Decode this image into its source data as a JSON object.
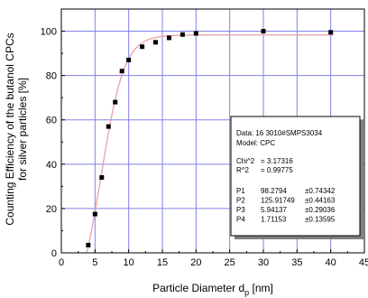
{
  "chart_data": {
    "type": "scatter",
    "xlabel": "Particle Diameter d",
    "xlabel_sub": "p",
    "xlabel_unit": " [nm]",
    "ylabel_line1": "Counting Efficiency of the butanol CPCs",
    "ylabel_line2": "for silver particles  [%]",
    "xlim": [
      0,
      45
    ],
    "ylim": [
      0,
      110
    ],
    "xticks": [
      "0",
      "5",
      "10",
      "15",
      "20",
      "25",
      "30",
      "35",
      "40",
      "45"
    ],
    "yticks": [
      "0",
      "20",
      "40",
      "60",
      "80",
      "100"
    ],
    "grid": true,
    "series": [
      {
        "marker": "square",
        "x": [
          4,
          5,
          6,
          7,
          8,
          9,
          10,
          12,
          14,
          16,
          18,
          20,
          30,
          40
        ],
        "y": [
          3.5,
          17.5,
          34,
          57,
          68,
          82,
          87,
          93,
          95,
          97,
          98.5,
          99,
          100,
          99.5
        ]
      }
    ],
    "fit": {
      "P1": 98.2794,
      "P2": 125.91749,
      "P3": 5.94137,
      "P4": 1.71153
    }
  },
  "infobox": {
    "data_line": "Data: 16 3010#SMPS3034",
    "model_line": "Model: CPC",
    "chi_label": "Chi^2",
    "chi_value": "=  3.17316",
    "r_label": "R^2",
    "r_value": "=  0.99775",
    "params": [
      {
        "name": "P1",
        "value": "98.2794",
        "err": "±0.74342"
      },
      {
        "name": "P2",
        "value": "125.91749",
        "err": "±0.44163"
      },
      {
        "name": "P3",
        "value": "5.94137",
        "err": "±0.29036"
      },
      {
        "name": "P4",
        "value": "1.71153",
        "err": "±0.13595"
      }
    ]
  },
  "colors": {
    "grid": "#8080e8",
    "fit_line": "#e8a0a0",
    "marker": "#000000"
  }
}
